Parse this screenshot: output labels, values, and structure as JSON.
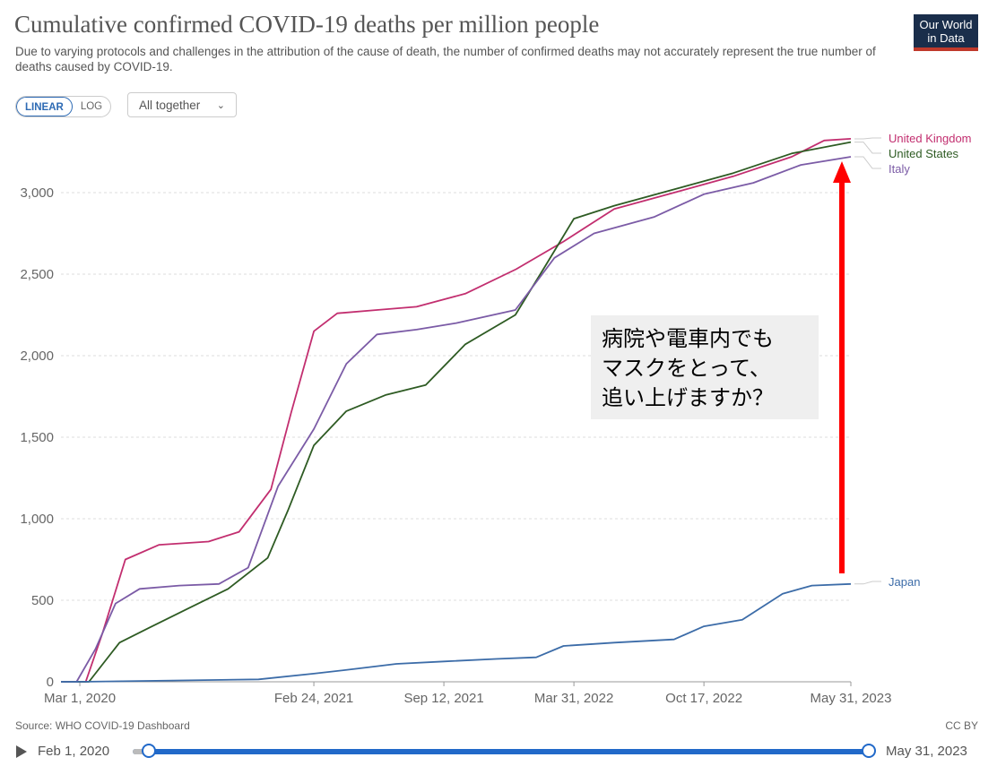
{
  "header": {
    "title": "Cumulative confirmed COVID-19 deaths per million people",
    "subtitle": "Due to varying protocols and challenges in the attribution of the cause of death, the number of confirmed deaths may not accurately represent the true number of deaths caused by COVID-19.",
    "logo_line1": "Our World",
    "logo_line2": "in Data"
  },
  "controls": {
    "linear_label": "LINEAR",
    "log_label": "LOG",
    "dropdown_label": "All together",
    "dropdown_icon": "chevron-down-icon"
  },
  "annotation": {
    "lines": [
      "病院や電車内でも",
      "マスクをとって、",
      "追い上げますか？"
    ],
    "arrow_color": "#ff0000"
  },
  "footer": {
    "source": "Source: WHO COVID-19 Dashboard",
    "license": "CC BY",
    "timeline_start": "Feb 1, 2020",
    "timeline_end": "May 31, 2023",
    "play_icon": "play-icon"
  },
  "chart_data": {
    "type": "line",
    "title": "Cumulative confirmed COVID-19 deaths per million people",
    "ylim": [
      0,
      3400
    ],
    "yticks": [
      0,
      500,
      1000,
      1500,
      2000,
      2500,
      3000
    ],
    "ytick_labels": [
      "0",
      "500",
      "1,000",
      "1,500",
      "2,000",
      "2,500",
      "3,000"
    ],
    "xticks": [
      "2020-03-01",
      "2021-02-24",
      "2021-09-12",
      "2022-03-31",
      "2022-10-17",
      "2023-05-31"
    ],
    "xtick_labels": [
      "Mar 1, 2020",
      "Feb 24, 2021",
      "Sep 12, 2021",
      "Mar 31, 2022",
      "Oct 17, 2022",
      "May 31, 2023"
    ],
    "xrange": [
      "2020-02-01",
      "2023-05-31"
    ],
    "grid": "horizontal dashed",
    "legend": "right end labels",
    "series": [
      {
        "name": "United Kingdom",
        "color": "#c22e6f",
        "points": [
          [
            "2020-02-01",
            0
          ],
          [
            "2020-03-10",
            0
          ],
          [
            "2020-04-05",
            300
          ],
          [
            "2020-05-10",
            750
          ],
          [
            "2020-07-01",
            840
          ],
          [
            "2020-09-15",
            860
          ],
          [
            "2020-11-01",
            920
          ],
          [
            "2020-12-20",
            1180
          ],
          [
            "2021-01-20",
            1650
          ],
          [
            "2021-02-24",
            2150
          ],
          [
            "2021-04-01",
            2260
          ],
          [
            "2021-06-01",
            2280
          ],
          [
            "2021-08-01",
            2300
          ],
          [
            "2021-10-15",
            2380
          ],
          [
            "2022-01-01",
            2530
          ],
          [
            "2022-03-15",
            2700
          ],
          [
            "2022-06-01",
            2900
          ],
          [
            "2022-09-01",
            3000
          ],
          [
            "2022-12-01",
            3100
          ],
          [
            "2023-03-01",
            3220
          ],
          [
            "2023-04-20",
            3320
          ],
          [
            "2023-05-31",
            3330
          ]
        ]
      },
      {
        "name": "United States",
        "color": "#2e5b23",
        "points": [
          [
            "2020-02-01",
            0
          ],
          [
            "2020-03-15",
            0
          ],
          [
            "2020-05-01",
            240
          ],
          [
            "2020-06-15",
            330
          ],
          [
            "2020-08-15",
            450
          ],
          [
            "2020-10-15",
            570
          ],
          [
            "2020-12-15",
            760
          ],
          [
            "2021-01-15",
            1050
          ],
          [
            "2021-02-24",
            1450
          ],
          [
            "2021-04-15",
            1660
          ],
          [
            "2021-06-15",
            1760
          ],
          [
            "2021-08-15",
            1820
          ],
          [
            "2021-10-15",
            2070
          ],
          [
            "2021-12-31",
            2250
          ],
          [
            "2022-02-15",
            2550
          ],
          [
            "2022-03-31",
            2840
          ],
          [
            "2022-06-01",
            2920
          ],
          [
            "2022-09-01",
            3020
          ],
          [
            "2022-12-01",
            3120
          ],
          [
            "2023-03-01",
            3240
          ],
          [
            "2023-05-31",
            3310
          ]
        ]
      },
      {
        "name": "Italy",
        "color": "#7b5ba6",
        "points": [
          [
            "2020-02-01",
            0
          ],
          [
            "2020-02-25",
            0
          ],
          [
            "2020-03-25",
            200
          ],
          [
            "2020-04-25",
            480
          ],
          [
            "2020-06-01",
            570
          ],
          [
            "2020-08-01",
            590
          ],
          [
            "2020-10-01",
            600
          ],
          [
            "2020-11-15",
            700
          ],
          [
            "2020-12-31",
            1200
          ],
          [
            "2021-02-24",
            1550
          ],
          [
            "2021-04-15",
            1950
          ],
          [
            "2021-06-01",
            2130
          ],
          [
            "2021-08-01",
            2160
          ],
          [
            "2021-10-01",
            2200
          ],
          [
            "2021-12-31",
            2280
          ],
          [
            "2022-03-01",
            2600
          ],
          [
            "2022-05-01",
            2750
          ],
          [
            "2022-08-01",
            2850
          ],
          [
            "2022-10-17",
            2990
          ],
          [
            "2023-01-01",
            3060
          ],
          [
            "2023-03-15",
            3170
          ],
          [
            "2023-05-31",
            3220
          ]
        ]
      },
      {
        "name": "Japan",
        "color": "#3c6ca8",
        "points": [
          [
            "2020-02-01",
            0
          ],
          [
            "2020-03-01",
            0
          ],
          [
            "2020-06-01",
            5
          ],
          [
            "2020-12-01",
            15
          ],
          [
            "2021-02-24",
            50
          ],
          [
            "2021-05-01",
            80
          ],
          [
            "2021-07-01",
            110
          ],
          [
            "2021-09-12",
            125
          ],
          [
            "2021-12-01",
            140
          ],
          [
            "2022-02-01",
            150
          ],
          [
            "2022-03-15",
            220
          ],
          [
            "2022-06-01",
            240
          ],
          [
            "2022-09-01",
            260
          ],
          [
            "2022-10-17",
            340
          ],
          [
            "2022-12-15",
            380
          ],
          [
            "2023-02-15",
            540
          ],
          [
            "2023-04-01",
            590
          ],
          [
            "2023-05-31",
            600
          ]
        ]
      }
    ]
  }
}
